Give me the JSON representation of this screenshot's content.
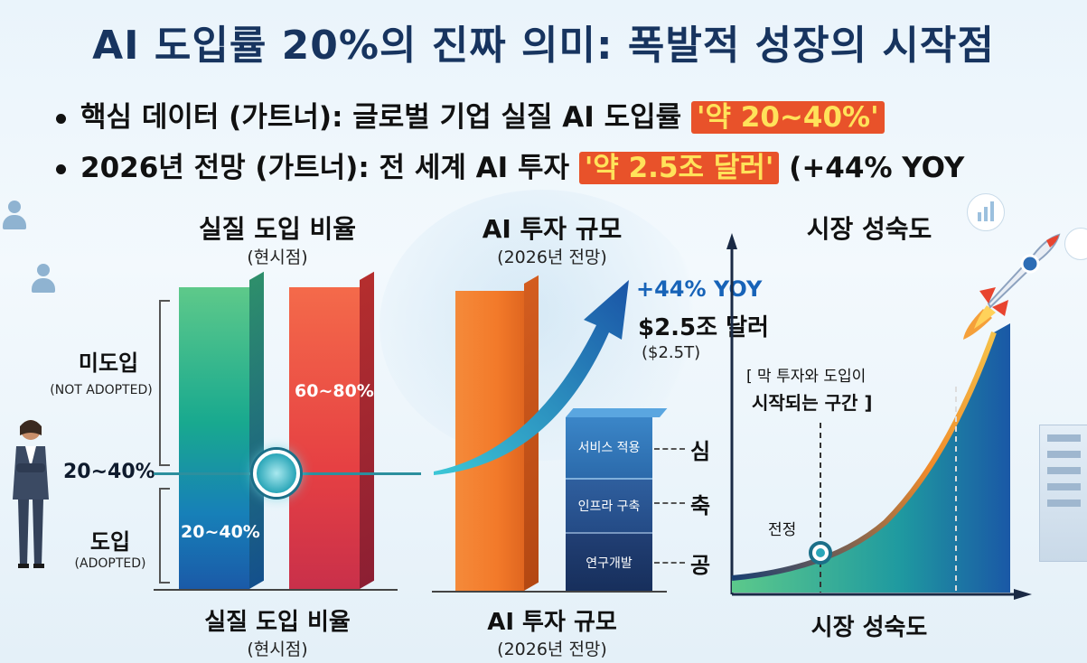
{
  "title": "AI 도입률 20%의 진짜 의미: 폭발적 성장의 시작점",
  "bullets": [
    {
      "text": "핵심 데이터 (가트너): 글로벌 기업 실질 AI 도입률 ",
      "highlight": "'약 20~40%'",
      "suffix": ""
    },
    {
      "text": "2026년 전망 (가트너): 전 세계 AI 투자 ",
      "highlight": "'약 2.5조 달러'",
      "suffix": " (+44% YOY"
    }
  ],
  "panel1": {
    "heading": "실질 도입 비율",
    "subheading": "(현시점)",
    "not_adopted_label": "미도입",
    "not_adopted_sub": "(NOT ADOPTED)",
    "adopted_label": "도입",
    "adopted_sub": "(ADOPTED)",
    "marker_label": "20~40%",
    "bar_green_label": "20~40%",
    "bar_red_label": "60~80%",
    "footer": "실질 도입 비율",
    "footer_sub": "(현시점)"
  },
  "panel2": {
    "heading": "AI 투자 규모",
    "subheading": "(2026년 전망)",
    "growth": "+44% YOY",
    "amount": "$2.5조 달러",
    "amount_sub": "($2.5T)",
    "segments": [
      "서비스 적용",
      "인프라 구축",
      "연구개발"
    ],
    "side_chars": [
      "심",
      "축",
      "공"
    ],
    "footer": "AI 투자 규모",
    "footer_sub": "(2026년 전망)"
  },
  "panel3": {
    "heading": "시장 성숙도",
    "annotation_line1": "[ 막 투자와 도입이",
    "annotation_line2": "시작되는 구간 ]",
    "point_label": "전정",
    "footer": "시장 성숙도"
  },
  "colors": {
    "title": "#17345f",
    "highlight_bg": "#e8522a",
    "highlight_text": "#ffe25a",
    "growth_text": "#1763b8"
  }
}
